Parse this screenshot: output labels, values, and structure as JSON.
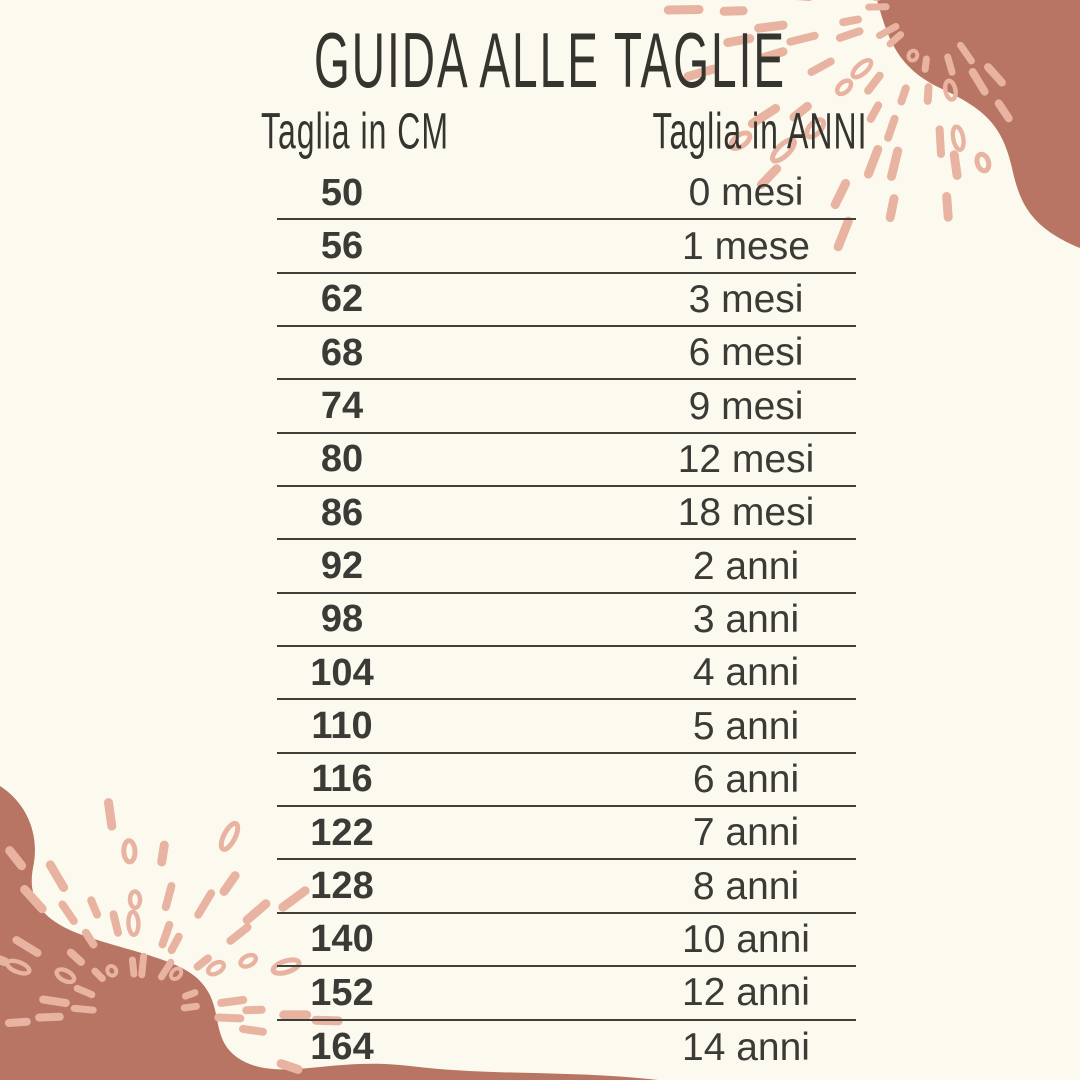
{
  "title": "GUIDA ALLE TAGLIE",
  "table": {
    "headers": {
      "cm": "Taglia in CM",
      "age": "Taglia in ANNI"
    },
    "rows": [
      {
        "cm": "50",
        "age": "0 mesi"
      },
      {
        "cm": "56",
        "age": "1 mese"
      },
      {
        "cm": "62",
        "age": "3 mesi"
      },
      {
        "cm": "68",
        "age": "6 mesi"
      },
      {
        "cm": "74",
        "age": "9 mesi"
      },
      {
        "cm": "80",
        "age": "12 mesi"
      },
      {
        "cm": "86",
        "age": "18 mesi"
      },
      {
        "cm": "92",
        "age": "2 anni"
      },
      {
        "cm": "98",
        "age": "3 anni"
      },
      {
        "cm": "104",
        "age": "4 anni"
      },
      {
        "cm": "110",
        "age": "5 anni"
      },
      {
        "cm": "116",
        "age": "6 anni"
      },
      {
        "cm": "122",
        "age": "7 anni"
      },
      {
        "cm": "128",
        "age": "8 anni"
      },
      {
        "cm": "140",
        "age": "10 anni"
      },
      {
        "cm": "152",
        "age": "12 anni"
      },
      {
        "cm": "164",
        "age": "14 anni"
      }
    ]
  },
  "theme": {
    "background": "#fcfaef",
    "blob_color": "#b87563",
    "seed_dash_color": "#e9b3a1",
    "text_color": "#3b3a36",
    "title_color": "#35342e",
    "line_color": "#3f3e39"
  },
  "decorations": {
    "top_right": "terracotta-blob-with-seed-burst",
    "bottom_left": "terracotta-blob-with-seed-burst"
  }
}
